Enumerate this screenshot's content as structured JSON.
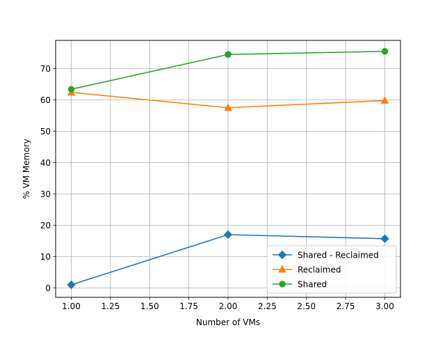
{
  "chart_data": {
    "type": "line",
    "title": "",
    "xlabel": "Number of VMs",
    "ylabel": "% VM Memory",
    "xlim": [
      0.9,
      3.1
    ],
    "ylim": [
      -3,
      79
    ],
    "x_ticks": [
      1.0,
      1.25,
      1.5,
      1.75,
      2.0,
      2.25,
      2.5,
      2.75,
      3.0
    ],
    "x_tick_labels": [
      "1.00",
      "1.25",
      "1.50",
      "1.75",
      "2.00",
      "2.25",
      "2.50",
      "2.75",
      "3.00"
    ],
    "y_ticks": [
      0,
      10,
      20,
      30,
      40,
      50,
      60,
      70
    ],
    "y_tick_labels": [
      "0",
      "10",
      "20",
      "30",
      "40",
      "50",
      "60",
      "70"
    ],
    "grid": true,
    "legend_position": "lower-right",
    "series": [
      {
        "name": "Shared - Reclaimed",
        "color": "#1f77b4",
        "marker": "diamond",
        "x": [
          1,
          2,
          3
        ],
        "values": [
          1.0,
          17.0,
          15.7
        ]
      },
      {
        "name": "Reclaimed",
        "color": "#ff7f0e",
        "marker": "triangle",
        "x": [
          1,
          2,
          3
        ],
        "values": [
          62.4,
          57.5,
          59.8
        ]
      },
      {
        "name": "Shared",
        "color": "#2ca02c",
        "marker": "circle",
        "x": [
          1,
          2,
          3
        ],
        "values": [
          63.4,
          74.5,
          75.5
        ]
      }
    ]
  }
}
